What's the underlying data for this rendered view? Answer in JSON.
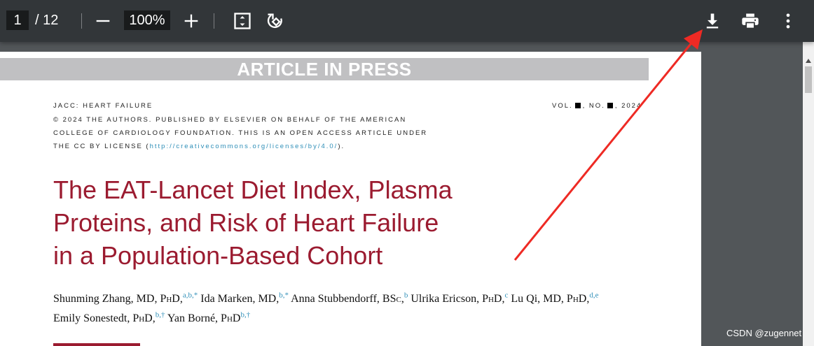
{
  "toolbar": {
    "current_page": "1",
    "page_total": "/ 12",
    "zoom": "100%",
    "icons": [
      "minus-icon",
      "plus-icon",
      "fit-page-icon",
      "rotate-icon",
      "download-icon",
      "print-icon",
      "more-vert-icon"
    ]
  },
  "document": {
    "banner": "ARTICLE IN PRESS",
    "journal": "JACC: HEART FAILURE",
    "vol_prefix": "VOL.",
    "no_prefix": ", NO.",
    "year": ", 2024",
    "license_line1": "© 2024 THE AUTHORS. PUBLISHED BY ELSEVIER ON BEHALF OF THE AMERICAN",
    "license_line2": "COLLEGE OF CARDIOLOGY FOUNDATION. THIS IS AN OPEN ACCESS ARTICLE UNDER",
    "license_line3_prefix": "THE CC BY LICENSE (",
    "license_link": "http://creativecommons.org/licenses/by/4.0/",
    "license_line3_suffix": ").",
    "title_line1": "The EAT-Lancet Diet Index, Plasma",
    "title_line2": "Proteins, and Risk of Heart Failure",
    "title_line3": "in a Population-Based Cohort",
    "authors": [
      {
        "name": "Shunming Zhang, MD, ",
        "degree": "PhD",
        "sup": "a,b,*"
      },
      {
        "name": "Ida Marken, MD,",
        "degree": "",
        "sup": "b,*"
      },
      {
        "name": "Anna Stubbendorff, ",
        "degree": "BSc",
        "sup": "b"
      },
      {
        "name": "Ulrika Ericson, ",
        "degree": "PhD",
        "sup": "c"
      },
      {
        "name": "Lu Qi, MD, ",
        "degree": "PhD",
        "sup": "d,e"
      },
      {
        "name": "Emily Sonestedt, ",
        "degree": "PhD",
        "sup": "b,†"
      },
      {
        "name": "Yan Borné, ",
        "degree": "PhD",
        "sup": "b,†"
      }
    ]
  },
  "watermark": "CSDN @zugennet",
  "colors": {
    "title": "#9b1b30",
    "link": "#2f8fb8",
    "toolbar": "#323639",
    "annotation_arrow": "#ee2a24"
  }
}
